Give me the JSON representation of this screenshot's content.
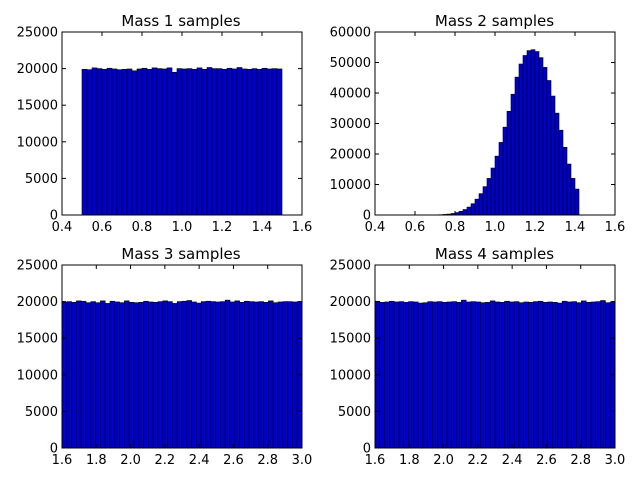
{
  "colors": {
    "bar_fill": "#0000cc",
    "bar_edge": "#000000",
    "background": "#ffffff"
  },
  "chart_data": [
    {
      "type": "bar",
      "title": "Mass 1 samples",
      "xlim": [
        0.4,
        1.6
      ],
      "ylim": [
        0,
        25000
      ],
      "xticks": [
        "0.4",
        "0.6",
        "0.8",
        "1.0",
        "1.2",
        "1.4",
        "1.6"
      ],
      "yticks": [
        "0",
        "5000",
        "10000",
        "15000",
        "20000",
        "25000"
      ],
      "bin_edges_range": [
        0.5,
        1.5
      ],
      "values": [
        19900,
        19850,
        20100,
        20000,
        19900,
        20050,
        19950,
        19850,
        19900,
        19950,
        19700,
        19950,
        20050,
        19900,
        20100,
        20000,
        19950,
        20100,
        19500,
        20000,
        19950,
        20000,
        19900,
        20100,
        19900,
        20150,
        20000,
        20000,
        19900,
        20050,
        19950,
        20150,
        19950,
        19900,
        20000,
        19900,
        20050,
        19950,
        20000,
        19950
      ]
    },
    {
      "type": "bar",
      "title": "Mass 2 samples",
      "xlim": [
        0.4,
        1.6
      ],
      "ylim": [
        0,
        60000
      ],
      "xticks": [
        "0.4",
        "0.6",
        "0.8",
        "1.0",
        "1.2",
        "1.4",
        "1.6"
      ],
      "yticks": [
        "0",
        "10000",
        "20000",
        "30000",
        "40000",
        "50000",
        "60000"
      ],
      "bin_edges_range": [
        0.4,
        1.5
      ],
      "values": [
        0,
        0,
        0,
        0,
        0,
        0,
        0,
        0,
        0,
        0,
        0,
        0,
        0,
        0,
        0,
        0,
        100,
        200,
        300,
        500,
        800,
        1200,
        1800,
        2600,
        3700,
        5200,
        7000,
        9300,
        12000,
        15400,
        19300,
        23800,
        28800,
        34000,
        39600,
        45200,
        49500,
        52300,
        53900,
        54200,
        53600,
        51600,
        48400,
        44100,
        39000,
        33400,
        27800,
        22200,
        16700,
        12000,
        8500,
        0,
        0,
        0,
        0
      ]
    },
    {
      "type": "bar",
      "title": "Mass 3 samples",
      "xlim": [
        1.6,
        3.0
      ],
      "ylim": [
        0,
        25000
      ],
      "xticks": [
        "1.6",
        "1.8",
        "2.0",
        "2.2",
        "2.4",
        "2.6",
        "2.8",
        "3.0"
      ],
      "yticks": [
        "0",
        "5000",
        "10000",
        "15000",
        "20000",
        "25000"
      ],
      "bin_edges_range": [
        1.6,
        3.0
      ],
      "values": [
        19900,
        20000,
        19900,
        20100,
        20050,
        19850,
        20000,
        19850,
        20100,
        19750,
        20050,
        19950,
        19850,
        20100,
        19900,
        19850,
        19900,
        20050,
        19950,
        19900,
        20000,
        20100,
        20000,
        19750,
        20000,
        20050,
        20150,
        19950,
        19800,
        20000,
        20050,
        20000,
        19950,
        20000,
        20200,
        19950,
        20100,
        19900,
        20050,
        20000,
        19950,
        20000,
        19900,
        20100,
        19850,
        19950,
        20000,
        20000,
        19950,
        20000
      ]
    },
    {
      "type": "bar",
      "title": "Mass 4 samples",
      "xlim": [
        1.6,
        3.0
      ],
      "ylim": [
        0,
        25000
      ],
      "xticks": [
        "1.6",
        "1.8",
        "2.0",
        "2.2",
        "2.4",
        "2.6",
        "2.8",
        "3.0"
      ],
      "yticks": [
        "0",
        "5000",
        "10000",
        "15000",
        "20000",
        "25000"
      ],
      "bin_edges_range": [
        1.6,
        3.0
      ],
      "values": [
        20050,
        19900,
        19950,
        20050,
        19950,
        20000,
        19900,
        20000,
        19950,
        19800,
        19850,
        20000,
        19950,
        20000,
        19900,
        19950,
        20000,
        19900,
        20200,
        19950,
        20000,
        19950,
        19850,
        19900,
        20100,
        19950,
        19900,
        20050,
        19950,
        20000,
        19850,
        19950,
        19900,
        20000,
        20050,
        19900,
        19950,
        19900,
        19800,
        20050,
        19950,
        20000,
        19850,
        20100,
        19900,
        19950,
        20000,
        20150,
        19850,
        19950
      ]
    }
  ]
}
